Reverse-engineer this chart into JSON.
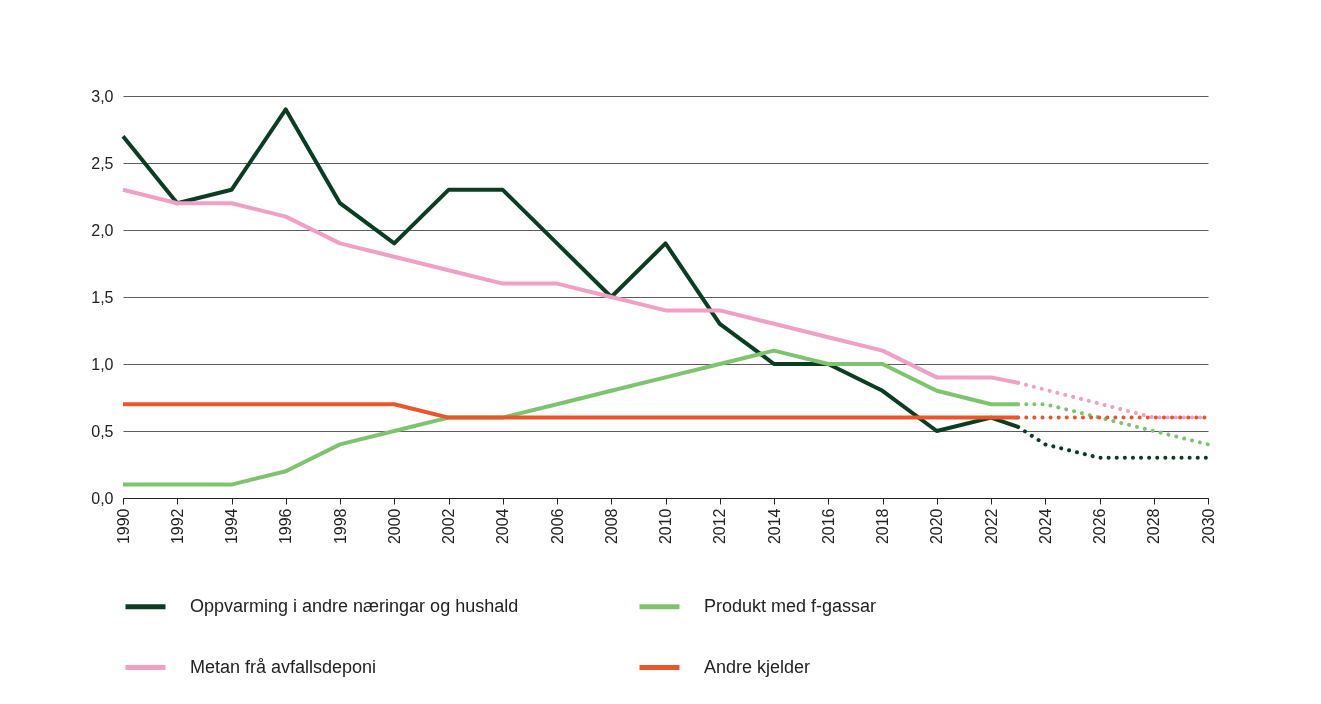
{
  "chart_data": {
    "type": "line",
    "xlim": [
      1990,
      2030
    ],
    "xticks": [
      1990,
      1992,
      1994,
      1996,
      1998,
      2000,
      2002,
      2004,
      2006,
      2008,
      2010,
      2012,
      2014,
      2016,
      2018,
      2020,
      2022,
      2024,
      2026,
      2028,
      2030
    ],
    "ylim": [
      0,
      3
    ],
    "yticks": [
      {
        "value": 0,
        "label": "0,0"
      },
      {
        "value": 0.5,
        "label": "0,5"
      },
      {
        "value": 1,
        "label": "1,0"
      },
      {
        "value": 1.5,
        "label": "1,5"
      },
      {
        "value": 2,
        "label": "2,0"
      },
      {
        "value": 2.5,
        "label": "2,5"
      },
      {
        "value": 3,
        "label": "3,0"
      }
    ],
    "grid": "y",
    "legend": "bottom",
    "line_style": "solid",
    "series": [
      {
        "name": "Oppvarming i andre næringar og hushald",
        "color": "#0b3d23",
        "x": [
          1990,
          1992,
          1994,
          1996,
          1998,
          2000,
          2002,
          2004,
          2006,
          2008,
          2010,
          2012,
          2014,
          2016,
          2018,
          2020,
          2022,
          2023
        ],
        "values": [
          2.7,
          2.2,
          2.3,
          2.9,
          2.2,
          1.9,
          2.3,
          2.3,
          1.9,
          1.5,
          1.9,
          1.3,
          1.0,
          1.0,
          0.8,
          0.5,
          0.6,
          0.53
        ]
      },
      {
        "name": "Produkt med f-gassar",
        "color": "#7ec46f",
        "x": [
          1990,
          1992,
          1994,
          1996,
          1998,
          2000,
          2002,
          2004,
          2006,
          2008,
          2010,
          2012,
          2014,
          2016,
          2018,
          2020,
          2022,
          2023
        ],
        "values": [
          0.1,
          0.1,
          0.1,
          0.2,
          0.4,
          0.5,
          0.6,
          0.6,
          0.7,
          0.8,
          0.9,
          1.0,
          1.1,
          1.0,
          1.0,
          0.8,
          0.7,
          0.7
        ]
      },
      {
        "name": "Metan frå avfallsdeponi",
        "color": "#f29fc5",
        "x": [
          1990,
          1992,
          1994,
          1996,
          1998,
          2000,
          2002,
          2004,
          2006,
          2008,
          2010,
          2012,
          2014,
          2016,
          2018,
          2020,
          2022,
          2023
        ],
        "values": [
          2.3,
          2.2,
          2.2,
          2.1,
          1.9,
          1.8,
          1.7,
          1.6,
          1.6,
          1.5,
          1.4,
          1.4,
          1.3,
          1.2,
          1.1,
          0.9,
          0.9,
          0.86
        ]
      },
      {
        "name": "Andre kjelder",
        "color": "#e8562a",
        "x": [
          1990,
          2000,
          2002,
          2023
        ],
        "values": [
          0.7,
          0.7,
          0.6,
          0.6
        ]
      },
      {
        "color": "#0b3d23",
        "line_style": "dotted",
        "x": [
          2023,
          2024,
          2026,
          2028,
          2030
        ],
        "values": [
          0.53,
          0.4,
          0.3,
          0.3,
          0.3
        ]
      },
      {
        "color": "#7ec46f",
        "line_style": "dotted",
        "x": [
          2023,
          2024,
          2026,
          2028,
          2030
        ],
        "values": [
          0.7,
          0.7,
          0.6,
          0.5,
          0.4
        ]
      },
      {
        "color": "#f29fc5",
        "line_style": "dotted",
        "x": [
          2023,
          2028,
          2030
        ],
        "values": [
          0.86,
          0.6,
          0.6
        ]
      },
      {
        "color": "#e8562a",
        "line_style": "dotted",
        "x": [
          2023,
          2030
        ],
        "values": [
          0.6,
          0.6
        ]
      }
    ]
  }
}
